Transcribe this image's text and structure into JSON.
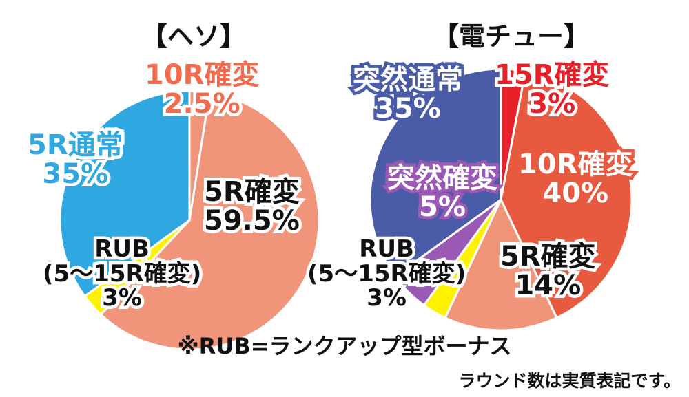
{
  "chart_data": [
    {
      "type": "pie",
      "title": "【ヘソ】",
      "slices": [
        {
          "lines": [
            "10R確変",
            "2.5%"
          ],
          "value": 2.5,
          "color": "#f0947a",
          "text_color": "#f26b4f"
        },
        {
          "lines": [
            "5R確変",
            "59.5%"
          ],
          "value": 59.5,
          "color": "#f0947a",
          "text_color": "#111111"
        },
        {
          "lines": [
            "RUB",
            "(5～15R確変)",
            "3%"
          ],
          "value": 3,
          "color": "#fff200",
          "text_color": "#111111"
        },
        {
          "lines": [
            "5R通常",
            "35%"
          ],
          "value": 35,
          "color": "#2fa7e0",
          "text_color": "#2fa7e0"
        }
      ]
    },
    {
      "type": "pie",
      "title": "【電チュー】",
      "slices": [
        {
          "lines": [
            "15R確変",
            "3%"
          ],
          "value": 3,
          "color": "#e8202a",
          "text_color": "#e8202a"
        },
        {
          "lines": [
            "10R確変",
            "40%"
          ],
          "value": 40,
          "color": "#e85a3f",
          "text_color": "#ffffff"
        },
        {
          "lines": [
            "5R確変",
            "14%"
          ],
          "value": 14,
          "color": "#f0947a",
          "text_color": "#111111"
        },
        {
          "lines": [
            "RUB",
            "(5～15R確変)",
            "3%"
          ],
          "value": 3,
          "color": "#fff200",
          "text_color": "#111111"
        },
        {
          "lines": [
            "突然確変",
            "5%"
          ],
          "value": 5,
          "color": "#9b59b6",
          "text_color": "#ffffff"
        },
        {
          "lines": [
            "突然通常",
            "35%"
          ],
          "value": 35,
          "color": "#4a5ba8",
          "text_color": "#ffffff"
        }
      ]
    }
  ],
  "footnote": "※RUB=ランクアップ型ボーナス",
  "remark": "ラウンド数は実質表記です。"
}
